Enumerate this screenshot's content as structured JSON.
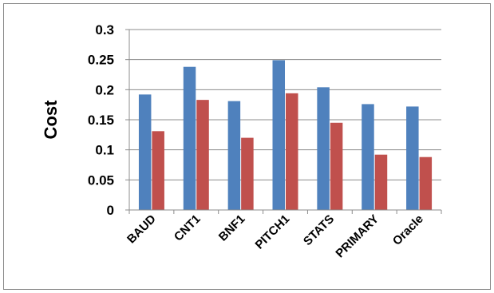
{
  "chart_data": {
    "type": "bar",
    "title": "",
    "xlabel": "",
    "ylabel": "Cost",
    "ylim": [
      0,
      0.3
    ],
    "yticks": [
      "0",
      "0.05",
      "0.1",
      "0.15",
      "0.2",
      "0.25",
      "0.3"
    ],
    "grid": "horizontal",
    "legend": "none",
    "categories": [
      "BAUD",
      "CNT1",
      "BNF1",
      "PITCH1",
      "STATS",
      "PRIMARY",
      "Oracle"
    ],
    "series": [
      {
        "color": "#4F81BD",
        "values": [
          0.192,
          0.238,
          0.181,
          0.249,
          0.204,
          0.176,
          0.172
        ]
      },
      {
        "color": "#C0504D",
        "values": [
          0.131,
          0.183,
          0.12,
          0.194,
          0.145,
          0.092,
          0.088
        ]
      }
    ]
  }
}
